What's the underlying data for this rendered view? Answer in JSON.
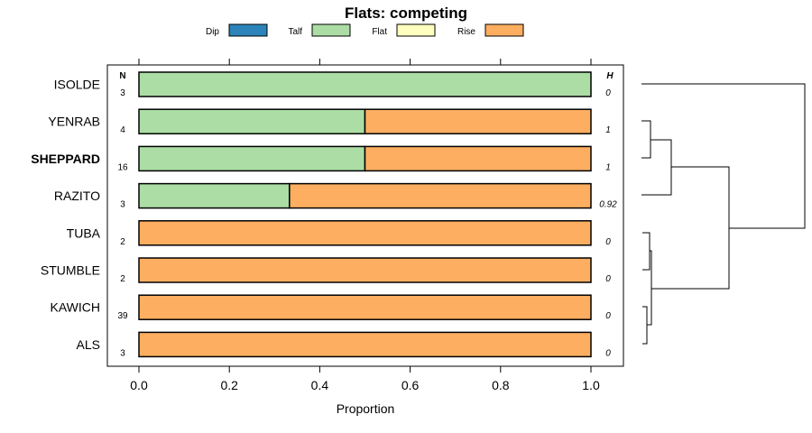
{
  "chart_data": {
    "type": "bar",
    "orientation": "horizontal-stacked-proportion",
    "title": "Flats: competing",
    "xlabel": "Proportion",
    "xlim": [
      0,
      1
    ],
    "xticks": [
      "0.0",
      "0.2",
      "0.4",
      "0.6",
      "0.8",
      "1.0"
    ],
    "n_header": "N",
    "h_header": "H",
    "legend": [
      {
        "name": "Dip",
        "color": "#2b83ba"
      },
      {
        "name": "Talf",
        "color": "#abdda4"
      },
      {
        "name": "Flat",
        "color": "#ffffbf"
      },
      {
        "name": "Rise",
        "color": "#fdae61"
      }
    ],
    "categories": [
      "ISOLDE",
      "YENRAB",
      "SHEPPARD",
      "RAZITO",
      "TUBA",
      "STUMBLE",
      "KAWICH",
      "ALS"
    ],
    "highlight": "SHEPPARD",
    "n": [
      "3",
      "4",
      "16",
      "3",
      "2",
      "2",
      "39",
      "3"
    ],
    "h": [
      "0",
      "1",
      "1",
      "0.92",
      "0",
      "0",
      "0",
      "0"
    ],
    "series": [
      {
        "name": "Dip",
        "values": [
          0,
          0,
          0,
          0,
          0,
          0,
          0,
          0
        ]
      },
      {
        "name": "Talf",
        "values": [
          1.0,
          0.5,
          0.5,
          0.333,
          0,
          0,
          0,
          0
        ]
      },
      {
        "name": "Flat",
        "values": [
          0,
          0,
          0,
          0,
          0,
          0,
          0,
          0
        ]
      },
      {
        "name": "Rise",
        "values": [
          0,
          0.5,
          0.5,
          0.667,
          1.0,
          1.0,
          1.0,
          1.0
        ]
      }
    ]
  }
}
